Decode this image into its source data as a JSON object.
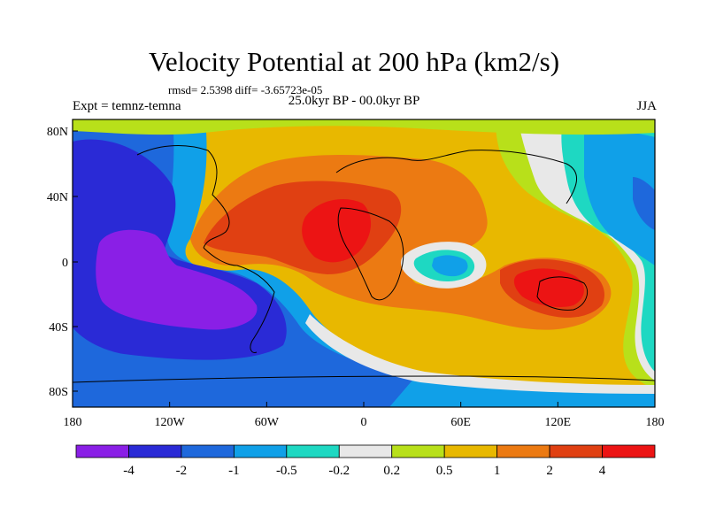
{
  "title": "Velocity Potential at 200 hPa (km2/s)",
  "stats": "rmsd= 2.5398 diff= -3.65723e-05",
  "experiment": "Expt = temnz-temna",
  "period": "25.0kyr BP - 00.0kyr BP",
  "season": "JJA",
  "axes": {
    "x_ticks": [
      "180",
      "120W",
      "60W",
      "0",
      "60E",
      "120E",
      "180"
    ],
    "y_ticks": [
      "80N",
      "40N",
      "0",
      "40S",
      "80S"
    ]
  },
  "colorbar": {
    "colors": [
      "#8a1fe6",
      "#2a2ad6",
      "#1e68dc",
      "#10a0e8",
      "#1ed8c2",
      "#e8e8e8",
      "#b8e01a",
      "#e8b800",
      "#ec7a12",
      "#e04012",
      "#ec1414"
    ],
    "labels": [
      "-4",
      "-2",
      "-1",
      "-0.5",
      "-0.2",
      "0.2",
      "0.5",
      "1",
      "2",
      "4"
    ]
  },
  "palette": {
    "deep_purple": "#8a1fe6",
    "deep_blue": "#2a2ad6",
    "mid_blue": "#1e68dc",
    "light_blue": "#10a0e8",
    "cyan": "#1ed8c2",
    "white": "#e8e8e8",
    "lime": "#b8e01a",
    "gold": "#e8b800",
    "orange": "#ec7a12",
    "red_orange": "#e04012",
    "red": "#ec1414"
  }
}
